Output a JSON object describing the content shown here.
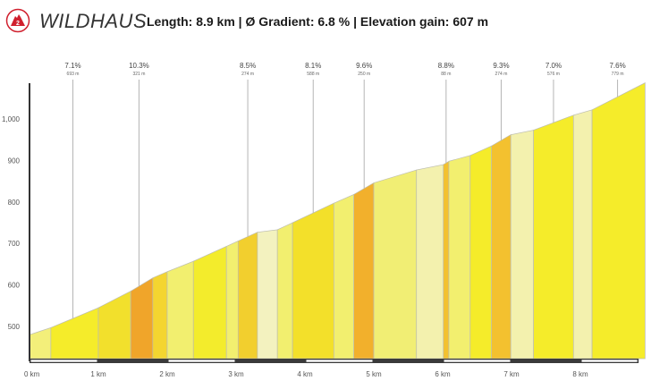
{
  "header": {
    "title": "WILDHAUS",
    "stats": "Length: 8.9 km  |  Ø Gradient: 6.8 %  |  Elevation gain: 607 m",
    "logo_icon": "mountain-2-icon",
    "brand_color": "#d0202e"
  },
  "chart_data": {
    "type": "area",
    "title": "WILDHAUS",
    "subtitle": "Length: 8.9 km | Ø Gradient: 6.8 % | Elevation gain: 607 m",
    "xlabel": "",
    "ylabel": "",
    "xlim": [
      0,
      8.95
    ],
    "ylim": [
      415,
      1100
    ],
    "y_ticks": [
      500,
      600,
      700,
      800,
      900,
      1000
    ],
    "y_tick_labels": [
      "500",
      "600",
      "700",
      "800",
      "900",
      "1,000"
    ],
    "x_ticks": [
      0,
      1,
      2,
      3,
      4,
      5,
      6,
      7,
      8
    ],
    "x_tick_labels": [
      "0 km",
      "1 km",
      "2 km",
      "3 km",
      "4 km",
      "5 km",
      "6 km",
      "7 km",
      "8 km"
    ],
    "grid": false,
    "segments": [
      {
        "x0": 0.0,
        "x1": 0.31,
        "y0": 480,
        "y1": 497,
        "color": "#f3ef7a"
      },
      {
        "x0": 0.31,
        "x1": 1.0,
        "y0": 497,
        "y1": 545,
        "color": "#f5ec2a"
      },
      {
        "x0": 1.0,
        "x1": 1.47,
        "y0": 545,
        "y1": 585,
        "color": "#f2e02c"
      },
      {
        "x0": 1.47,
        "x1": 1.79,
        "y0": 585,
        "y1": 617,
        "color": "#f0a52a"
      },
      {
        "x0": 1.79,
        "x1": 2.0,
        "y0": 617,
        "y1": 632,
        "color": "#f4d530"
      },
      {
        "x0": 2.0,
        "x1": 2.38,
        "y0": 632,
        "y1": 657,
        "color": "#f2ef6f"
      },
      {
        "x0": 2.38,
        "x1": 2.86,
        "y0": 657,
        "y1": 693,
        "color": "#f3ec2c"
      },
      {
        "x0": 2.86,
        "x1": 3.03,
        "y0": 693,
        "y1": 706,
        "color": "#f2ef6f"
      },
      {
        "x0": 3.03,
        "x1": 3.31,
        "y0": 706,
        "y1": 727,
        "color": "#f2cf2e"
      },
      {
        "x0": 3.31,
        "x1": 3.6,
        "y0": 727,
        "y1": 733,
        "color": "#f3f2bf"
      },
      {
        "x0": 3.6,
        "x1": 3.82,
        "y0": 733,
        "y1": 750,
        "color": "#f2ef6f"
      },
      {
        "x0": 3.82,
        "x1": 4.42,
        "y0": 750,
        "y1": 797,
        "color": "#f3e02a"
      },
      {
        "x0": 4.42,
        "x1": 4.71,
        "y0": 797,
        "y1": 818,
        "color": "#f2ef6f"
      },
      {
        "x0": 4.71,
        "x1": 5.0,
        "y0": 818,
        "y1": 846,
        "color": "#f2b02c"
      },
      {
        "x0": 5.0,
        "x1": 5.62,
        "y0": 846,
        "y1": 877,
        "color": "#f1ee74"
      },
      {
        "x0": 5.62,
        "x1": 6.01,
        "y0": 877,
        "y1": 890,
        "color": "#f3f1ae"
      },
      {
        "x0": 6.01,
        "x1": 6.09,
        "y0": 890,
        "y1": 898,
        "color": "#f3c12f"
      },
      {
        "x0": 6.09,
        "x1": 6.4,
        "y0": 898,
        "y1": 912,
        "color": "#f2ef6f"
      },
      {
        "x0": 6.4,
        "x1": 6.71,
        "y0": 912,
        "y1": 935,
        "color": "#f5ec2a"
      },
      {
        "x0": 6.71,
        "x1": 6.99,
        "y0": 935,
        "y1": 962,
        "color": "#f3c12f"
      },
      {
        "x0": 6.99,
        "x1": 7.32,
        "y0": 962,
        "y1": 973,
        "color": "#f3f1ae"
      },
      {
        "x0": 7.32,
        "x1": 7.9,
        "y0": 973,
        "y1": 1009,
        "color": "#f5ec2a"
      },
      {
        "x0": 7.9,
        "x1": 8.17,
        "y0": 1009,
        "y1": 1022,
        "color": "#f3f1ae"
      },
      {
        "x0": 8.17,
        "x1": 8.94,
        "y0": 1022,
        "y1": 1087,
        "color": "#f5ec2a"
      }
    ],
    "annotations": [
      {
        "x": 0.63,
        "gradient": "7.1%",
        "distance": "693 m"
      },
      {
        "x": 1.59,
        "gradient": "10.3%",
        "distance": "321 m"
      },
      {
        "x": 3.17,
        "gradient": "8.5%",
        "distance": "274 m"
      },
      {
        "x": 4.12,
        "gradient": "8.1%",
        "distance": "588 m"
      },
      {
        "x": 4.86,
        "gradient": "9.6%",
        "distance": "250 m"
      },
      {
        "x": 6.05,
        "gradient": "8.8%",
        "distance": "88 m"
      },
      {
        "x": 6.85,
        "gradient": "9.3%",
        "distance": "274 m"
      },
      {
        "x": 7.61,
        "gradient": "7.0%",
        "distance": "576 m"
      },
      {
        "x": 8.54,
        "gradient": "7.6%",
        "distance": "779 m"
      }
    ],
    "km_bar_colors": [
      "#ffffff",
      "#3a3a3a"
    ]
  }
}
